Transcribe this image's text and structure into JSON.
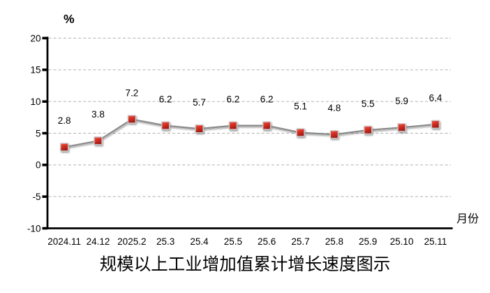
{
  "chart_data": {
    "type": "line",
    "title": "规模以上工业增加值累计增长速度图示",
    "ylabel": "%",
    "xlabel": "月份",
    "categories": [
      "2024.11",
      "24.12",
      "2025.2",
      "25.3",
      "25.4",
      "25.5",
      "25.6",
      "25.7",
      "25.8",
      "25.9",
      "25.10",
      "25.11"
    ],
    "values": [
      2.8,
      3.8,
      7.2,
      6.2,
      5.7,
      6.2,
      6.2,
      5.1,
      4.8,
      5.5,
      5.9,
      6.4
    ],
    "data_labels": [
      "2.8",
      "3.8",
      "7.2",
      "6.2",
      "5.7",
      "6.2",
      "6.2",
      "5.1",
      "4.8",
      "5.5",
      "5.9",
      "6.4"
    ],
    "ylim": [
      -10,
      20
    ],
    "ytick_step": 5,
    "ytick_labels": [
      "20",
      "15",
      "10",
      "5",
      "0",
      "-5",
      "-10"
    ],
    "grid": "dashed horizontal",
    "legend": "none",
    "colors": {
      "marker_fill": "#dc3226",
      "marker_fill_light": "#ef5b4e",
      "marker_fill_dark": "#a01b13",
      "marker_border": "#c9c9c9",
      "line": "#8a8a8a",
      "gridline": "#b0b0b0",
      "axis": "#000000",
      "text": "#000000",
      "background": "#ffffff"
    }
  }
}
